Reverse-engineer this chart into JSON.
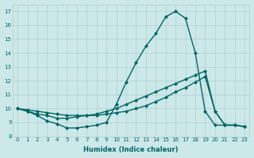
{
  "xlabel": "Humidex (Indice chaleur)",
  "x_values": [
    0,
    1,
    2,
    3,
    4,
    5,
    6,
    7,
    8,
    9,
    10,
    11,
    12,
    13,
    14,
    15,
    16,
    17,
    18,
    19,
    20,
    21,
    22,
    23
  ],
  "line1": [
    10.0,
    9.8,
    9.5,
    9.1,
    8.9,
    8.6,
    8.6,
    8.7,
    8.8,
    9.0,
    10.3,
    11.9,
    13.3,
    14.5,
    15.4,
    16.6,
    17.0,
    16.5,
    14.0,
    9.8,
    8.8,
    8.8,
    8.8,
    8.7
  ],
  "line2": [
    10.0,
    9.8,
    9.6,
    9.5,
    9.3,
    9.3,
    9.4,
    9.5,
    9.6,
    9.8,
    10.0,
    10.3,
    10.6,
    10.9,
    11.2,
    11.5,
    11.8,
    12.1,
    12.4,
    12.7,
    9.8,
    8.8,
    8.8,
    8.7
  ],
  "line3": [
    10.0,
    9.9,
    9.8,
    9.7,
    9.6,
    9.5,
    9.5,
    9.5,
    9.5,
    9.6,
    9.7,
    9.8,
    10.0,
    10.2,
    10.5,
    10.8,
    11.2,
    11.5,
    11.9,
    12.3,
    9.8,
    8.8,
    8.8,
    8.7
  ],
  "ylim": [
    8,
    17.5
  ],
  "xlim": [
    -0.5,
    23.5
  ],
  "yticks": [
    8,
    9,
    10,
    11,
    12,
    13,
    14,
    15,
    16,
    17
  ],
  "xticks": [
    0,
    1,
    2,
    3,
    4,
    5,
    6,
    7,
    8,
    9,
    10,
    11,
    12,
    13,
    14,
    15,
    16,
    17,
    18,
    19,
    20,
    21,
    22,
    23
  ],
  "line_color": "#006666",
  "bg_color": "#cce8e8",
  "grid_color": "#b0d0d0",
  "marker": "D",
  "marker_size": 2.0,
  "linewidth": 1.0,
  "tick_fontsize": 5.0,
  "xlabel_fontsize": 6.0
}
